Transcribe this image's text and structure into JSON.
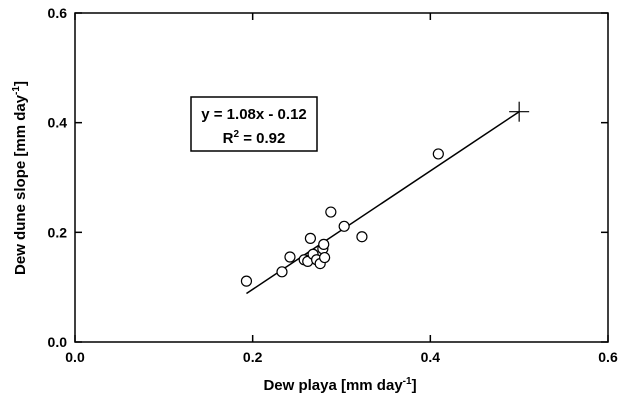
{
  "chart_data": {
    "type": "scatter",
    "title": "",
    "xlabel": "Dew playa [mm day",
    "xlabel_sup": "-1",
    "xlabel_tail": "]",
    "ylabel": "Dew dune slope [mm day",
    "ylabel_sup": "-1",
    "ylabel_tail": "]",
    "xlim": [
      0.0,
      0.6
    ],
    "ylim": [
      0.0,
      0.6
    ],
    "x_ticks": [
      "0.0",
      "0.2",
      "0.4",
      "0.6"
    ],
    "y_ticks": [
      "0.0",
      "0.2",
      "0.4",
      "0.6"
    ],
    "x_tick_values": [
      0.0,
      0.2,
      0.4,
      0.6
    ],
    "y_tick_values": [
      0.0,
      0.2,
      0.4,
      0.6
    ],
    "grid": false,
    "series": [
      {
        "marker": "circle",
        "points": [
          [
            0.193,
            0.111
          ],
          [
            0.233,
            0.128
          ],
          [
            0.242,
            0.155
          ],
          [
            0.258,
            0.15
          ],
          [
            0.262,
            0.147
          ],
          [
            0.265,
            0.189
          ],
          [
            0.268,
            0.16
          ],
          [
            0.272,
            0.15
          ],
          [
            0.276,
            0.143
          ],
          [
            0.279,
            0.17
          ],
          [
            0.28,
            0.178
          ],
          [
            0.281,
            0.154
          ],
          [
            0.288,
            0.237
          ],
          [
            0.303,
            0.211
          ],
          [
            0.323,
            0.192
          ],
          [
            0.409,
            0.343
          ]
        ]
      }
    ],
    "regression_line": {
      "slope": 1.08,
      "intercept": -0.12,
      "x_range": [
        0.193,
        0.5
      ]
    },
    "reference_point": {
      "marker": "plus",
      "x": 0.5,
      "y": 0.42
    },
    "annotation": {
      "equation": "y = 1.08x - 0.12",
      "r2_prefix": "R",
      "r2_sup": "2",
      "r2_value": " = 0.92"
    }
  }
}
